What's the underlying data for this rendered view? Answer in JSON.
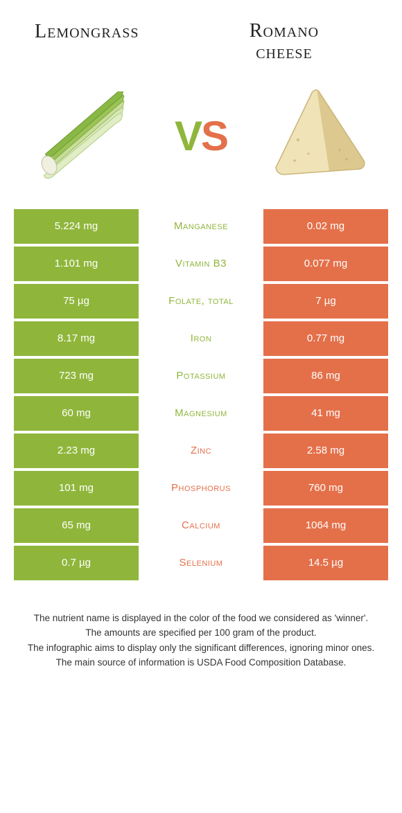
{
  "header": {
    "left_title": "Lemongrass",
    "right_title_line1": "Romano",
    "right_title_line2": "cheese"
  },
  "vs": {
    "v": "V",
    "s": "S"
  },
  "colors": {
    "green_bg": "#8fb63b",
    "orange_bg": "#e4704a",
    "white": "#ffffff",
    "green_text": "#8fb63b",
    "orange_text": "#e4704a",
    "cell_text_on_color": "#ffffff"
  },
  "rows": [
    {
      "left": "5.224 mg",
      "nutrient": "Manganese",
      "right": "0.02 mg",
      "winner": "left"
    },
    {
      "left": "1.101 mg",
      "nutrient": "Vitamin B3",
      "right": "0.077 mg",
      "winner": "left"
    },
    {
      "left": "75 µg",
      "nutrient": "Folate, total",
      "right": "7 µg",
      "winner": "left"
    },
    {
      "left": "8.17 mg",
      "nutrient": "Iron",
      "right": "0.77 mg",
      "winner": "left"
    },
    {
      "left": "723 mg",
      "nutrient": "Potassium",
      "right": "86 mg",
      "winner": "left"
    },
    {
      "left": "60 mg",
      "nutrient": "Magnesium",
      "right": "41 mg",
      "winner": "left"
    },
    {
      "left": "2.23 mg",
      "nutrient": "Zinc",
      "right": "2.58 mg",
      "winner": "right"
    },
    {
      "left": "101 mg",
      "nutrient": "Phosphorus",
      "right": "760 mg",
      "winner": "right"
    },
    {
      "left": "65 mg",
      "nutrient": "Calcium",
      "right": "1064 mg",
      "winner": "right"
    },
    {
      "left": "0.7 µg",
      "nutrient": "Selenium",
      "right": "14.5 µg",
      "winner": "right"
    }
  ],
  "footer": {
    "line1": "The nutrient name is displayed in the color of the food we considered as 'winner'.",
    "line2": "The amounts are specified per 100 gram of the product.",
    "line3": "The infographic aims to display only the significant differences, ignoring minor ones.",
    "line4": "The main source of information is USDA Food Composition Database."
  }
}
